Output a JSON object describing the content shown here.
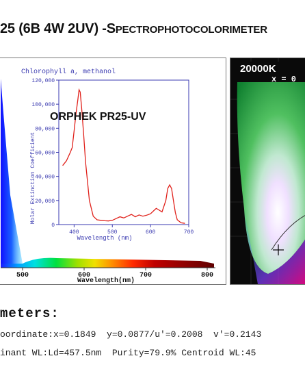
{
  "header": {
    "title_main": "25 (6B 4W 2UV) -S",
    "title_smallcaps": "PECTROPHOTOCOLORIMETER"
  },
  "spectrum_panel": {
    "x_tick_labels": [
      "500",
      "600",
      "700",
      "800"
    ],
    "xlabel": "Wavelength(nm)"
  },
  "chart_data": [
    {
      "type": "line",
      "title": "Chlorophyll a, methanol",
      "xlabel": "Wavelength (nm)",
      "ylabel": "Molar Extinction Coefficient",
      "xlim": [
        360,
        700
      ],
      "ylim": [
        0,
        120000
      ],
      "x_ticks": [
        400,
        500,
        600,
        700
      ],
      "y_ticks": [
        0,
        20000,
        40000,
        60000,
        80000,
        100000,
        120000
      ],
      "y_tick_labels": [
        "0",
        "20,000",
        "40,000",
        "60,000",
        "80,000",
        "100,000",
        "120,000"
      ],
      "series": [
        {
          "color": "#e0201a",
          "x": [
            370,
            380,
            390,
            395,
            400,
            405,
            410,
            413,
            416,
            420,
            425,
            430,
            440,
            450,
            460,
            470,
            480,
            490,
            500,
            510,
            520,
            530,
            540,
            550,
            560,
            570,
            580,
            590,
            600,
            610,
            615,
            620,
            630,
            640,
            645,
            650,
            655,
            660,
            665,
            670,
            680,
            690
          ],
          "y": [
            49000,
            53000,
            60000,
            64000,
            78000,
            92000,
            104000,
            112000,
            110000,
            96000,
            75000,
            52000,
            20000,
            7000,
            4000,
            3500,
            3200,
            3000,
            3500,
            5000,
            6500,
            5500,
            7000,
            8500,
            6500,
            8000,
            7000,
            7800,
            9000,
            12000,
            13500,
            12500,
            10500,
            20000,
            30000,
            33000,
            30000,
            20000,
            10000,
            4000,
            1500,
            1000
          ]
        }
      ],
      "grid": false,
      "annotation": "ORPHEK PR25-UV"
    }
  ],
  "cie_panel": {
    "cct_text": "20000K",
    "x_text": "x = 0"
  },
  "parameters": {
    "heading": "meters:",
    "line1": "oordinate:x=0.1849  y=0.0877/u'=0.2008  v'=0.2143",
    "line2": "inant WL:Ld=457.5nm  Purity=79.9% Centroid WL:45"
  },
  "colors": {
    "curve": "#e0201a",
    "axis": "#3a3ab0",
    "text_dark": "#111111"
  }
}
